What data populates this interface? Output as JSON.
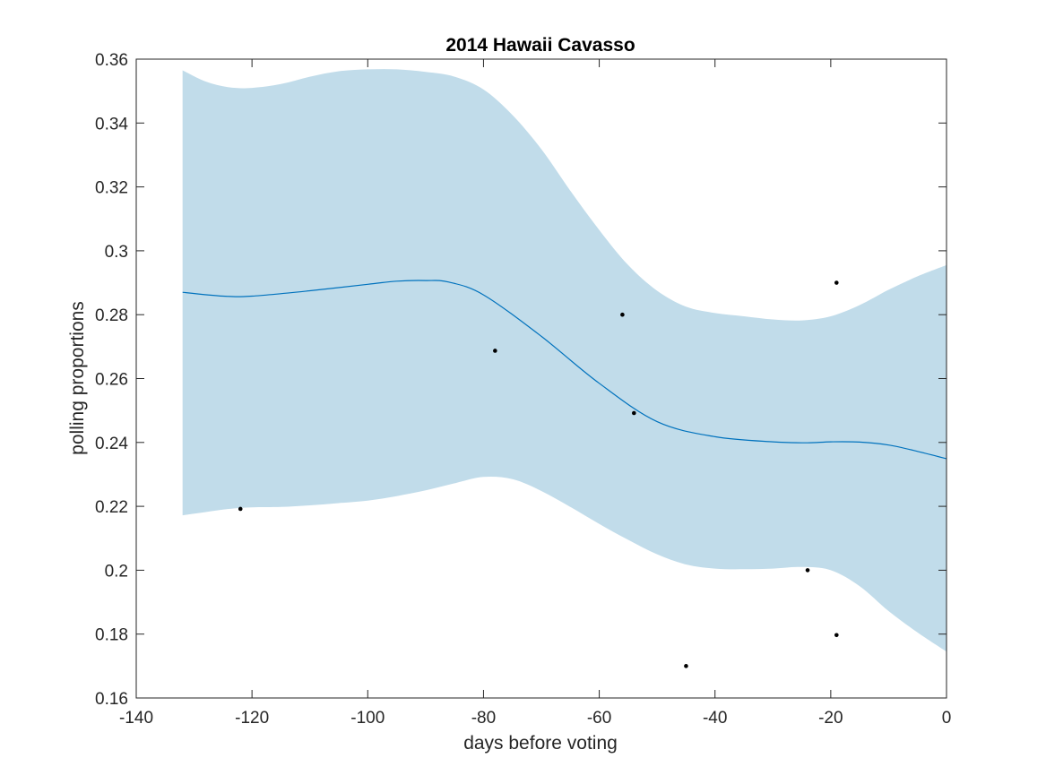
{
  "chart_data": {
    "type": "line",
    "title": "2014 Hawaii Cavasso",
    "xlabel": "days before voting",
    "ylabel": "polling proportions",
    "xlim": [
      -140,
      0
    ],
    "ylim": [
      0.16,
      0.36
    ],
    "x_ticks": [
      -140,
      -120,
      -100,
      -80,
      -60,
      -40,
      -20,
      0
    ],
    "x_tick_labels": [
      "-140",
      "-120",
      "-100",
      "-80",
      "-60",
      "-40",
      "-20",
      "0"
    ],
    "y_ticks": [
      0.16,
      0.18,
      0.2,
      0.22,
      0.24,
      0.26,
      0.28,
      0.3,
      0.32,
      0.34,
      0.36
    ],
    "y_tick_labels": [
      "0.16",
      "0.18",
      "0.2",
      "0.22",
      "0.24",
      "0.26",
      "0.28",
      "0.3",
      "0.32",
      "0.34",
      "0.36"
    ],
    "grid": false,
    "series": [
      {
        "kind": "mean-line",
        "color": "#0072BD",
        "x": [
          -132,
          -125,
          -120,
          -110,
          -100,
          -95,
          -90,
          -86,
          -80,
          -70,
          -60,
          -50,
          -40,
          -30,
          -24,
          -20,
          -15,
          -10,
          -5,
          0
        ],
        "y": [
          0.287,
          0.2858,
          0.2858,
          0.2875,
          0.2895,
          0.2905,
          0.2907,
          0.2902,
          0.2862,
          0.2732,
          0.2585,
          0.2465,
          0.2418,
          0.2402,
          0.2399,
          0.2402,
          0.2401,
          0.2392,
          0.2372,
          0.2349
        ]
      },
      {
        "kind": "upper-bound",
        "color": "#c1dcea",
        "x": [
          -132,
          -128,
          -124,
          -120,
          -115,
          -110,
          -105,
          -100,
          -95,
          -90,
          -85,
          -80,
          -75,
          -70,
          -65,
          -60,
          -55,
          -50,
          -45,
          -40,
          -35,
          -30,
          -25,
          -20,
          -15,
          -10,
          -5,
          0
        ],
        "y": [
          0.3565,
          0.353,
          0.3512,
          0.351,
          0.3522,
          0.3545,
          0.3562,
          0.3568,
          0.3568,
          0.356,
          0.3545,
          0.3505,
          0.3425,
          0.3318,
          0.3188,
          0.3065,
          0.2955,
          0.2875,
          0.2825,
          0.2805,
          0.2795,
          0.2785,
          0.2782,
          0.2795,
          0.283,
          0.2878,
          0.292,
          0.2955
        ]
      },
      {
        "kind": "lower-bound",
        "color": "#c1dcea",
        "x": [
          -132,
          -128,
          -124,
          -120,
          -115,
          -110,
          -105,
          -100,
          -95,
          -90,
          -85,
          -80,
          -75,
          -70,
          -65,
          -60,
          -55,
          -50,
          -45,
          -40,
          -35,
          -30,
          -25,
          -20,
          -15,
          -10,
          -5,
          0
        ],
        "y": [
          0.2172,
          0.2182,
          0.2192,
          0.2197,
          0.2198,
          0.2203,
          0.221,
          0.2218,
          0.2232,
          0.225,
          0.2272,
          0.2292,
          0.2285,
          0.2248,
          0.2198,
          0.2145,
          0.2095,
          0.205,
          0.2018,
          0.2005,
          0.2003,
          0.2005,
          0.201,
          0.2,
          0.195,
          0.1872,
          0.1805,
          0.1745
        ]
      },
      {
        "kind": "polls",
        "color": "#000000",
        "x": [
          -122,
          -78,
          -56,
          -54,
          -45,
          -24,
          -19,
          -19
        ],
        "y": [
          0.2192,
          0.2687,
          0.28,
          0.2492,
          0.17,
          0.2,
          0.29,
          0.1797
        ]
      }
    ]
  }
}
